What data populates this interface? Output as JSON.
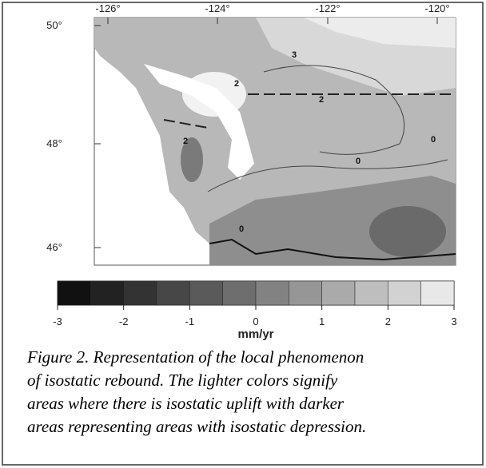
{
  "map": {
    "lon_labels": [
      "-126°",
      "-124°",
      "-122°",
      "-120°"
    ],
    "lat_labels": [
      "50°",
      "48°",
      "46°"
    ],
    "contour_labels": [
      "3",
      "2",
      "2",
      "2",
      "0",
      "0",
      "0"
    ]
  },
  "colorbar": {
    "colors": [
      "#111111",
      "#222222",
      "#333333",
      "#474747",
      "#5a5a5a",
      "#6e6e6e",
      "#828282",
      "#969696",
      "#aaaaaa",
      "#bebebe",
      "#d2d2d2",
      "#e8e8e8"
    ],
    "ticks": [
      -3,
      -2,
      -1,
      0,
      1,
      2,
      3
    ],
    "unit": "mm/yr"
  },
  "caption": {
    "lines": [
      "Figure 2. Representation of the local phenomenon",
      "of isostatic rebound. The lighter colors signify",
      "areas where there is isostatic uplift with darker",
      "areas representing areas with isostatic depression."
    ]
  }
}
